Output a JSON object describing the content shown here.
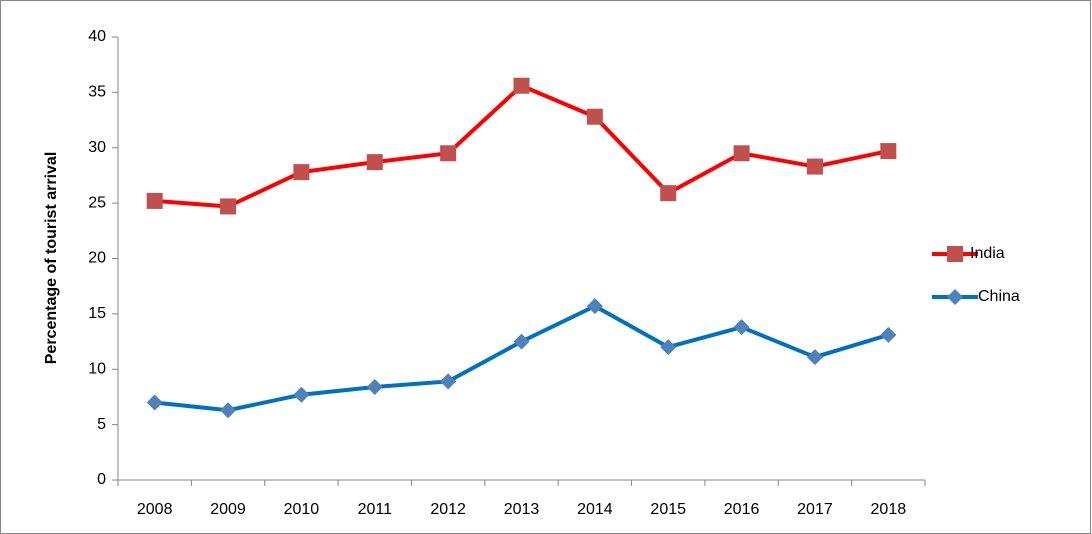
{
  "chart_data": {
    "type": "line",
    "y_label": "Percentage of tourist arrival",
    "categories": [
      "2008",
      "2009",
      "2010",
      "2011",
      "2012",
      "2013",
      "2014",
      "2015",
      "2016",
      "2017",
      "2018"
    ],
    "series": [
      {
        "name": "India",
        "color": "#ff0000",
        "marker_color": "#c0504d",
        "marker": "square",
        "values": [
          25.2,
          24.7,
          27.8,
          28.7,
          29.5,
          35.6,
          32.8,
          25.9,
          29.5,
          28.3,
          29.7
        ]
      },
      {
        "name": "China",
        "color": "#0070c0",
        "marker_color": "#4f81bd",
        "marker": "diamond",
        "values": [
          7.0,
          6.3,
          7.7,
          8.4,
          8.9,
          12.5,
          15.7,
          12.0,
          13.8,
          11.1,
          13.1
        ]
      }
    ],
    "ylim": [
      0,
      40
    ],
    "yticks": [
      0,
      5,
      10,
      15,
      20,
      25,
      30,
      35,
      40
    ],
    "grid": false,
    "legend": "right"
  }
}
